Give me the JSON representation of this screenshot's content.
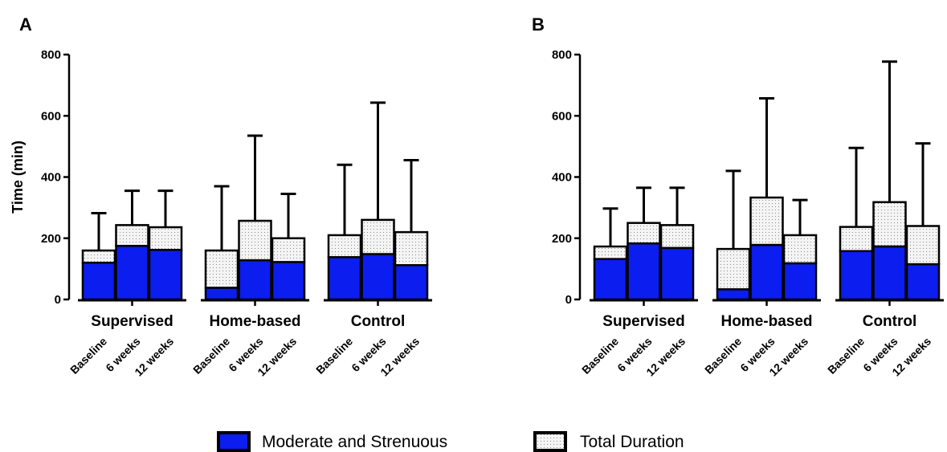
{
  "chart_data": [
    {
      "type": "bar",
      "panel": "A",
      "ylabel": "Time (min)",
      "ylim": [
        0,
        800
      ],
      "yticks": [
        0,
        200,
        400,
        600,
        800
      ],
      "groups": [
        "Supervised",
        "Home-based",
        "Control"
      ],
      "categories": [
        "Baseline",
        "6 weeks",
        "12 weeks"
      ],
      "stacked": true,
      "error_bars": "upper",
      "series": [
        {
          "name": "Moderate and Strenuous",
          "values": [
            [
              120,
              175,
              162
            ],
            [
              38,
              128,
              122
            ],
            [
              138,
              148,
              112
            ]
          ]
        },
        {
          "name": "Total Duration",
          "values": [
            [
              160,
              243,
              236
            ],
            [
              160,
              257,
              200
            ],
            [
              210,
              260,
              220
            ]
          ],
          "upper": [
            [
              282,
              355,
              355
            ],
            [
              370,
              535,
              345
            ],
            [
              440,
              643,
              455
            ]
          ]
        }
      ]
    },
    {
      "type": "bar",
      "panel": "B",
      "ylabel": "",
      "ylim": [
        0,
        800
      ],
      "yticks": [
        0,
        200,
        400,
        600,
        800
      ],
      "groups": [
        "Supervised",
        "Home-based",
        "Control"
      ],
      "categories": [
        "Baseline",
        "6 weeks",
        "12 weeks"
      ],
      "stacked": true,
      "error_bars": "upper",
      "series": [
        {
          "name": "Moderate and Strenuous",
          "values": [
            [
              132,
              183,
              168
            ],
            [
              33,
              178,
              118
            ],
            [
              158,
              173,
              115
            ]
          ]
        },
        {
          "name": "Total Duration",
          "values": [
            [
              173,
              250,
              243
            ],
            [
              165,
              333,
              210
            ],
            [
              237,
              318,
              240
            ]
          ],
          "upper": [
            [
              297,
              365,
              365
            ],
            [
              420,
              657,
              325
            ],
            [
              495,
              777,
              510
            ]
          ]
        }
      ]
    }
  ],
  "legend": {
    "position": "bottom",
    "items": [
      {
        "label": "Moderate and Strenuous",
        "swatch": "blue-fill"
      },
      {
        "label": "Total Duration",
        "swatch": "dotted-fill"
      }
    ]
  },
  "colors": {
    "moderate": "#0c1df0",
    "total": "#f4f4f4",
    "stroke": "#000000"
  }
}
